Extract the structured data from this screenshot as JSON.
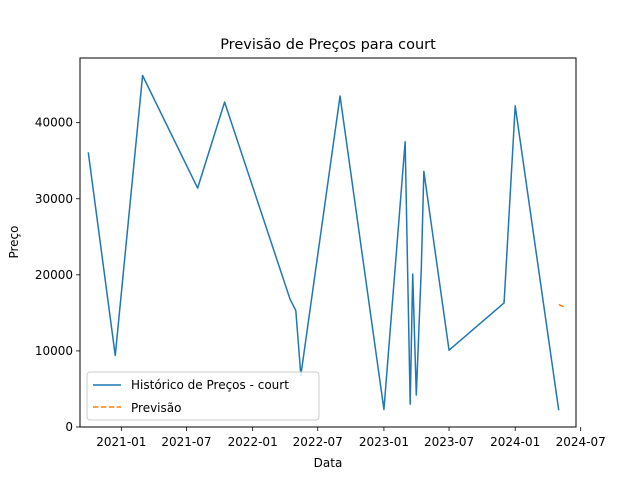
{
  "chart_data": {
    "type": "line",
    "title": "Previsão de Preços para court",
    "xlabel": "Data",
    "ylabel": "Preço",
    "xlim": [
      "2020-09-08",
      "2024-06-18"
    ],
    "ylim": [
      0,
      48500
    ],
    "x_ticks": [
      {
        "date": "2021-01-01",
        "label": "2021-01"
      },
      {
        "date": "2021-07-01",
        "label": "2021-07"
      },
      {
        "date": "2022-01-01",
        "label": "2022-01"
      },
      {
        "date": "2022-07-01",
        "label": "2022-07"
      },
      {
        "date": "2023-01-01",
        "label": "2023-01"
      },
      {
        "date": "2023-07-01",
        "label": "2023-07"
      },
      {
        "date": "2024-01-01",
        "label": "2024-01"
      },
      {
        "date": "2024-07-01",
        "label": "2024-07"
      }
    ],
    "y_ticks": [
      {
        "value": 0,
        "label": "0"
      },
      {
        "value": 10000,
        "label": "10000"
      },
      {
        "value": 20000,
        "label": "20000"
      },
      {
        "value": 30000,
        "label": "30000"
      },
      {
        "value": 40000,
        "label": "40000"
      }
    ],
    "grid": false,
    "legend_position": "lower-left",
    "series": [
      {
        "name": "Histórico de Preços - court",
        "color": "#1f77b4",
        "style": "solid",
        "points": [
          {
            "x": "2020-10-01",
            "y": 36100
          },
          {
            "x": "2020-12-15",
            "y": 9400
          },
          {
            "x": "2021-03-01",
            "y": 46200
          },
          {
            "x": "2021-08-01",
            "y": 31400
          },
          {
            "x": "2021-10-15",
            "y": 42700
          },
          {
            "x": "2022-04-15",
            "y": 16800
          },
          {
            "x": "2022-05-01",
            "y": 15300
          },
          {
            "x": "2022-05-15",
            "y": 6800
          },
          {
            "x": "2022-09-01",
            "y": 43500
          },
          {
            "x": "2023-01-01",
            "y": 2300
          },
          {
            "x": "2023-03-01",
            "y": 37500
          },
          {
            "x": "2023-03-15",
            "y": 3000
          },
          {
            "x": "2023-03-22",
            "y": 20100
          },
          {
            "x": "2023-04-01",
            "y": 4200
          },
          {
            "x": "2023-04-15",
            "y": 21000
          },
          {
            "x": "2023-04-22",
            "y": 33600
          },
          {
            "x": "2023-07-01",
            "y": 10100
          },
          {
            "x": "2023-12-01",
            "y": 16300
          },
          {
            "x": "2024-01-01",
            "y": 42200
          },
          {
            "x": "2024-05-01",
            "y": 2200
          }
        ]
      },
      {
        "name": "Previsão",
        "color": "#ff7f0e",
        "style": "dashed",
        "points": [
          {
            "x": "2024-05-01",
            "y": 16100
          },
          {
            "x": "2024-05-20",
            "y": 15700
          }
        ]
      }
    ]
  }
}
